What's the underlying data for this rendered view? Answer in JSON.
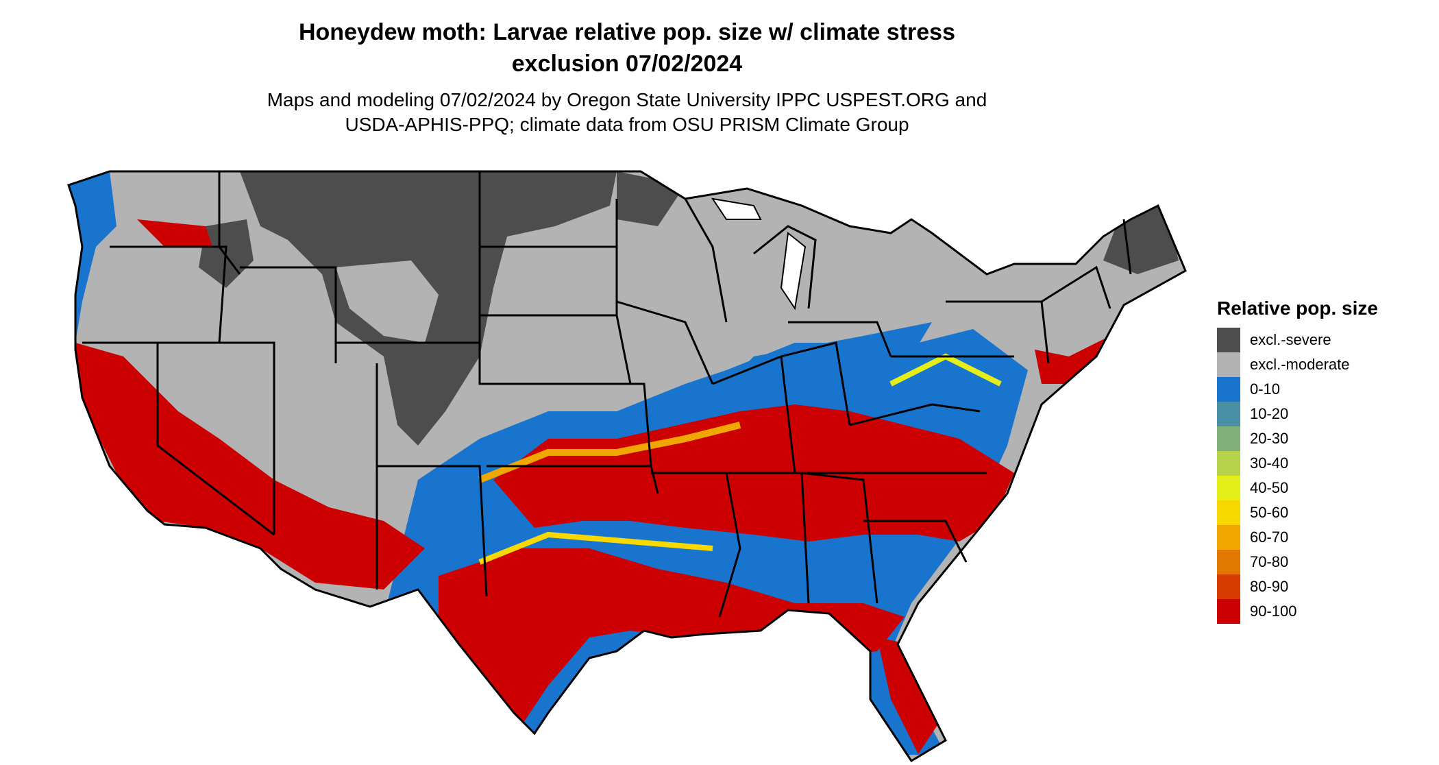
{
  "title_line1": "Honeydew moth: Larvae relative pop. size w/ climate stress",
  "title_line2": "exclusion 07/02/2024",
  "subtitle_line1": "Maps and modeling 07/02/2024 by Oregon State University IPPC USPEST.ORG and",
  "subtitle_line2": "USDA-APHIS-PPQ; climate data from OSU PRISM Climate Group",
  "legend": {
    "title": "Relative pop. size",
    "items": [
      {
        "label": "excl.-severe",
        "color": "#4d4d4d"
      },
      {
        "label": "excl.-moderate",
        "color": "#b3b3b3"
      },
      {
        "label": "0-10",
        "color": "#1874cd"
      },
      {
        "label": "10-20",
        "color": "#4a90a4"
      },
      {
        "label": "20-30",
        "color": "#7fb07a"
      },
      {
        "label": "30-40",
        "color": "#b5d24a"
      },
      {
        "label": "40-50",
        "color": "#e6ee1a"
      },
      {
        "label": "50-60",
        "color": "#f7d900"
      },
      {
        "label": "60-70",
        "color": "#f0a800"
      },
      {
        "label": "70-80",
        "color": "#e07800"
      },
      {
        "label": "80-90",
        "color": "#d63c00"
      },
      {
        "label": "90-100",
        "color": "#cc0000"
      }
    ]
  }
}
